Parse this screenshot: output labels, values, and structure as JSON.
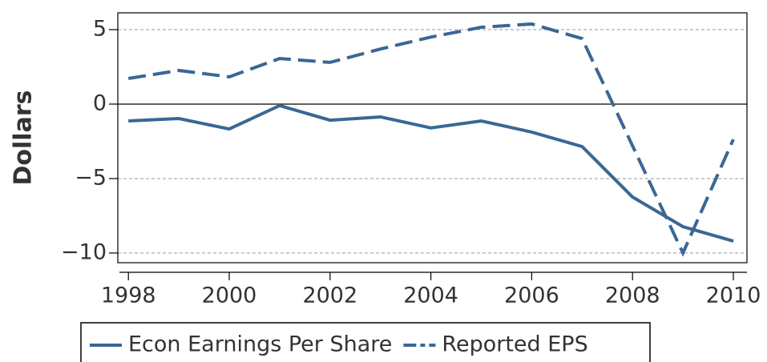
{
  "chart_data": {
    "type": "line",
    "ylabel": "Dollars",
    "x": [
      1998,
      1999,
      2000,
      2001,
      2002,
      2003,
      2004,
      2005,
      2006,
      2007,
      2008,
      2009,
      2010
    ],
    "series": [
      {
        "name": "Econ Earnings Per Share",
        "color": "#3a6795",
        "linestyle": "solid",
        "values": [
          -1.13,
          -0.97,
          -1.67,
          -0.1,
          -1.08,
          -0.86,
          -1.6,
          -1.13,
          -1.88,
          -2.85,
          -6.24,
          -8.23,
          -9.2
        ]
      },
      {
        "name": "Reported EPS",
        "color": "#3a6795",
        "linestyle": "dashed",
        "values": [
          1.72,
          2.26,
          1.83,
          3.06,
          2.8,
          3.7,
          4.5,
          5.16,
          5.38,
          4.4,
          -2.8,
          -10.0,
          -2.37
        ]
      }
    ],
    "xlim": [
      1997.79,
      2010.27
    ],
    "xticks": [
      1998,
      2000,
      2002,
      2004,
      2006,
      2008,
      2010
    ],
    "ylim": [
      -10.65,
      6.13
    ],
    "yticks": [
      {
        "value": -10,
        "label": "−10"
      },
      {
        "value": -5,
        "label": "−5"
      },
      0,
      5
    ],
    "grid": true,
    "legend": "bottom"
  }
}
